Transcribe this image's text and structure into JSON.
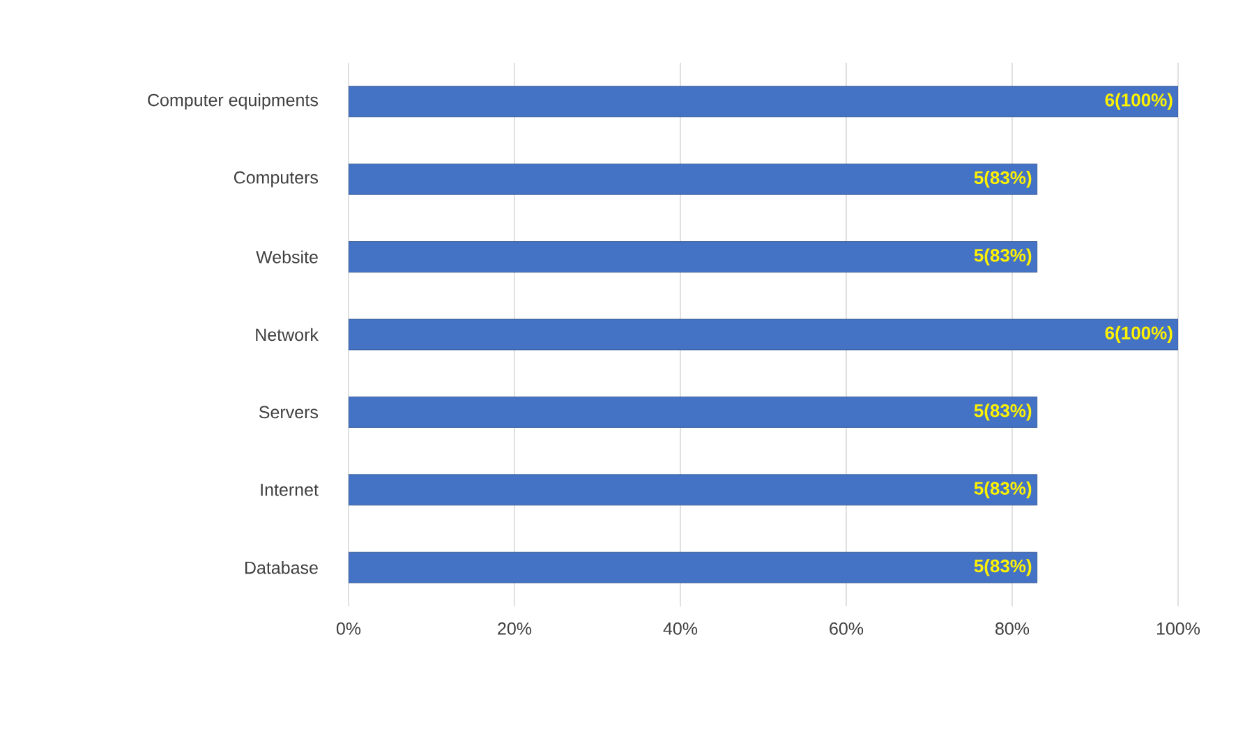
{
  "chart_data": {
    "type": "bar",
    "orientation": "horizontal",
    "categories": [
      "Computer equipments",
      "Computers",
      "Website",
      "Network",
      "Servers",
      "Internet",
      "Database"
    ],
    "values": [
      100,
      83,
      83,
      100,
      83,
      83,
      83
    ],
    "value_labels": [
      "6(100%)",
      "5(83%)",
      "5(83%)",
      "6(100%)",
      "5(83%)",
      "5(83%)",
      "5(83%)"
    ],
    "color": "#4472c4",
    "xlim": [
      0,
      100
    ],
    "xticks": [
      {
        "value": 0,
        "label": "0%"
      },
      {
        "value": 20,
        "label": "20%"
      },
      {
        "value": 40,
        "label": "40%"
      },
      {
        "value": 60,
        "label": "60%"
      },
      {
        "value": 80,
        "label": "80%"
      },
      {
        "value": 100,
        "label": "100%"
      }
    ],
    "grid": "x"
  }
}
